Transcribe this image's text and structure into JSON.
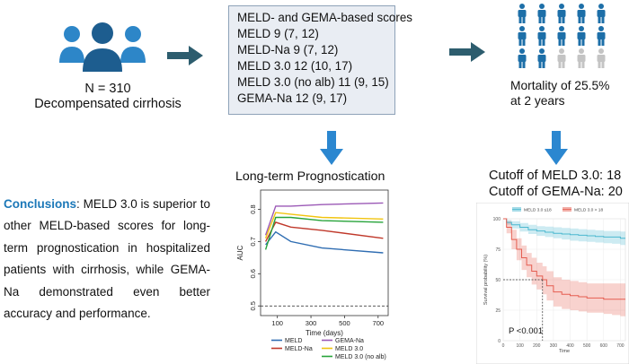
{
  "cohort": {
    "n_label": "N = 310",
    "description": "Decompensated cirrhosis"
  },
  "scores": {
    "title": "MELD- and GEMA-based scores",
    "items": [
      "MELD 9 (7, 12)",
      "MELD-Na 9 (7, 12)",
      "MELD 3.0 12 (10, 17)",
      "MELD 3.0 (no alb) 11 (9, 15)",
      "GEMA-Na 12 (9, 17)"
    ]
  },
  "mortality": {
    "line1": "Mortality of 25.5%",
    "line2": "at 2 years"
  },
  "conclusions": {
    "keyword": "Conclusions",
    "text": ": MELD 3.0 is superior to other MELD-based scores for long-term prognostication in hospitalized patients with cirrhosis, while GEMA-Na demonstrated even better accuracy and performance."
  },
  "cutoffs": {
    "meld": "Cutoff of MELD 3.0: 18",
    "gema": "Cutoff of GEMA-Na: 20"
  },
  "colors": {
    "arrow": "#2d5d6e",
    "blue_arrow": "#2b87d0",
    "person": "#1d6fa8",
    "person_grey": "#c4c4c4",
    "icon_people": "#1d6fa8"
  },
  "chart_data": [
    {
      "type": "line",
      "title": "Long-term Prognostication",
      "xlabel": "Time (days)",
      "ylabel": "AUC",
      "x": [
        30,
        90,
        180,
        365,
        730
      ],
      "xticks": [
        100,
        300,
        500,
        700
      ],
      "yticks": [
        "0.5",
        "0.6",
        "0.7",
        "0.8"
      ],
      "xlim": [
        0,
        760
      ],
      "ylim": [
        0.47,
        0.86
      ],
      "reference_line": 0.5,
      "series": [
        {
          "name": "MELD",
          "color": "#2f6db2",
          "values": [
            0.69,
            0.73,
            0.7,
            0.68,
            0.665
          ]
        },
        {
          "name": "MELD-Na",
          "color": "#c0392b",
          "values": [
            0.7,
            0.76,
            0.745,
            0.735,
            0.71
          ]
        },
        {
          "name": "GEMA-Na",
          "color": "#9b59b6",
          "values": [
            0.72,
            0.81,
            0.81,
            0.815,
            0.82
          ]
        },
        {
          "name": "MELD 3.0",
          "color": "#f1c40f",
          "values": [
            0.71,
            0.79,
            0.785,
            0.775,
            0.77
          ]
        },
        {
          "name": "MELD 3.0 (no alb)",
          "color": "#27a33a",
          "values": [
            0.675,
            0.775,
            0.775,
            0.765,
            0.76
          ]
        }
      ]
    },
    {
      "type": "line",
      "title": "",
      "xlabel": "Time",
      "ylabel": "Survival probability (%)",
      "xticks": [
        "0",
        "100",
        "200",
        "300",
        "400",
        "500",
        "600",
        "700"
      ],
      "yticks": [
        "0",
        "25",
        "50",
        "75",
        "100"
      ],
      "xlim": [
        0,
        730
      ],
      "ylim": [
        0,
        100
      ],
      "legend": [
        "MELD 3.0 ≤18",
        "MELD 3.0 > 18"
      ],
      "annotation": "P <0.001",
      "median_line": {
        "x": 235,
        "y": 50
      },
      "series": [
        {
          "name": "MELD 3.0 ≤18",
          "color": "#4bb8cf",
          "x": [
            0,
            20,
            50,
            100,
            150,
            200,
            250,
            300,
            350,
            400,
            450,
            500,
            550,
            600,
            650,
            700,
            730
          ],
          "values": [
            100,
            97,
            95,
            93,
            91,
            90,
            89,
            88,
            87.5,
            87,
            86.5,
            86,
            85.5,
            85,
            85,
            84,
            84
          ],
          "lower": [
            100,
            95,
            92,
            89.5,
            87.5,
            86,
            85,
            84,
            83,
            82,
            81.5,
            81,
            80.5,
            80,
            79.5,
            78.5,
            78
          ],
          "upper": [
            100,
            99,
            98,
            96.5,
            95,
            94,
            93.5,
            93,
            92.5,
            92,
            91.5,
            91,
            90.5,
            90,
            90,
            89.5,
            89
          ]
        },
        {
          "name": "MELD 3.0 > 18",
          "color": "#e55d50",
          "x": [
            0,
            20,
            50,
            80,
            110,
            140,
            170,
            200,
            235,
            260,
            300,
            350,
            400,
            450,
            500,
            550,
            600,
            650,
            700,
            730
          ],
          "values": [
            100,
            93,
            83,
            75,
            68,
            62,
            57,
            53,
            50,
            45,
            40,
            38,
            37,
            36,
            35,
            35,
            34,
            34,
            34,
            34
          ],
          "lower": [
            100,
            88,
            75,
            66,
            58,
            52,
            46,
            42,
            38,
            33,
            28,
            26,
            25,
            24,
            23,
            23,
            22,
            21,
            20,
            20
          ],
          "upper": [
            100,
            98,
            91,
            84,
            78,
            72,
            68,
            64,
            61,
            57,
            52,
            50,
            49,
            48,
            47,
            47,
            47,
            47,
            47,
            47
          ]
        }
      ]
    }
  ]
}
